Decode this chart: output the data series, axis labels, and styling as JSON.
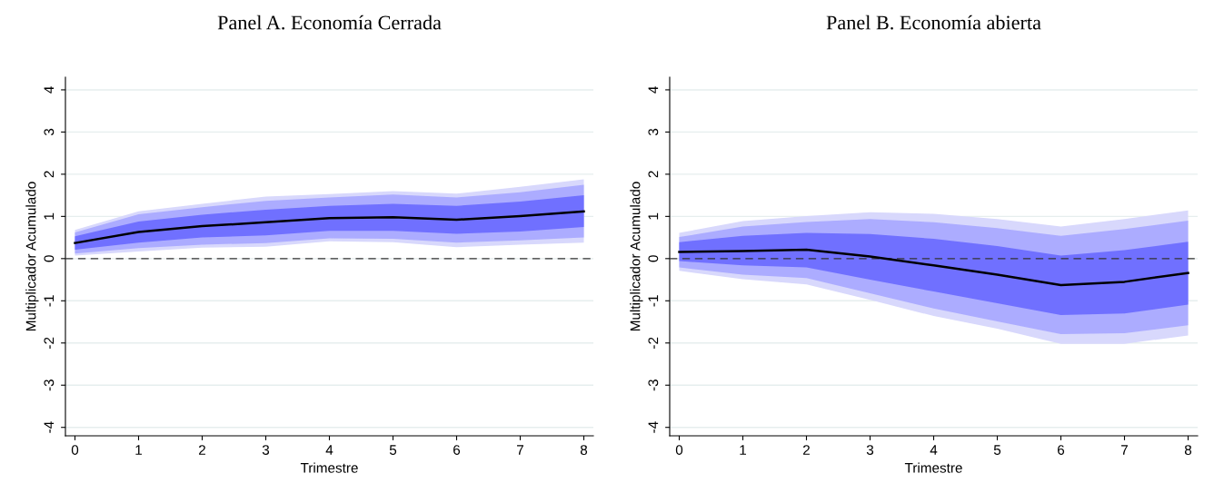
{
  "chart_data": [
    {
      "type": "line",
      "title": "Panel A. Economía Cerrada",
      "xlabel": "Trimestre",
      "ylabel": "Multiplicador Acumulado",
      "x": [
        0,
        1,
        2,
        3,
        4,
        5,
        6,
        7,
        8
      ],
      "xlim": [
        -0.15,
        8.15
      ],
      "xticks": [
        0,
        1,
        2,
        3,
        4,
        5,
        6,
        7,
        8
      ],
      "ylim": [
        -4.2,
        4.3
      ],
      "yticks": [
        {
          "value": -4,
          "label": "-4"
        },
        {
          "value": -3,
          "label": "-3"
        },
        {
          "value": -2,
          "label": "-2"
        },
        {
          "value": -1,
          "label": "-1"
        },
        0,
        1,
        2,
        3,
        4
      ],
      "grid": "y",
      "legend": false,
      "ref_lines": [
        {
          "axis": "y",
          "value": 0,
          "color": "#333333",
          "line_style": "dashed"
        }
      ],
      "series": [
        {
          "type": "area",
          "color": "#d8d8fc",
          "values": [
            null,
            null,
            null,
            null,
            null,
            null,
            null,
            null,
            null
          ],
          "lower": [
            0.07,
            0.17,
            0.26,
            0.28,
            0.41,
            0.39,
            0.27,
            0.33,
            0.38
          ],
          "upper": [
            0.68,
            1.12,
            1.3,
            1.47,
            1.53,
            1.6,
            1.54,
            1.7,
            1.88
          ]
        },
        {
          "type": "area",
          "color": "#acacff",
          "values": [
            null,
            null,
            null,
            null,
            null,
            null,
            null,
            null,
            null
          ],
          "lower": [
            0.12,
            0.25,
            0.33,
            0.37,
            0.48,
            0.47,
            0.38,
            0.43,
            0.5
          ],
          "upper": [
            0.62,
            1.05,
            1.22,
            1.37,
            1.45,
            1.52,
            1.45,
            1.57,
            1.75
          ]
        },
        {
          "type": "area",
          "color": "#7070ff",
          "values": [
            null,
            null,
            null,
            null,
            null,
            null,
            null,
            null,
            null
          ],
          "lower": [
            0.21,
            0.38,
            0.5,
            0.55,
            0.66,
            0.66,
            0.59,
            0.64,
            0.75
          ],
          "upper": [
            0.53,
            0.88,
            1.04,
            1.16,
            1.25,
            1.3,
            1.25,
            1.35,
            1.5
          ]
        },
        {
          "color": "#000000",
          "values": [
            0.37,
            0.63,
            0.77,
            0.86,
            0.96,
            0.98,
            0.92,
            1.01,
            1.12
          ]
        }
      ]
    },
    {
      "type": "line",
      "title": "Panel B. Economía abierta",
      "xlabel": "Trimestre",
      "ylabel": "Multiplicador Acumulado",
      "x": [
        0,
        1,
        2,
        3,
        4,
        5,
        6,
        7,
        8
      ],
      "xlim": [
        -0.15,
        8.15
      ],
      "xticks": [
        0,
        1,
        2,
        3,
        4,
        5,
        6,
        7,
        8
      ],
      "ylim": [
        -4.2,
        4.3
      ],
      "yticks": [
        {
          "value": -4,
          "label": "-4"
        },
        {
          "value": -3,
          "label": "-3"
        },
        {
          "value": -2,
          "label": "-2"
        },
        {
          "value": -1,
          "label": "-1"
        },
        0,
        1,
        2,
        3,
        4
      ],
      "grid": "y",
      "legend": false,
      "ref_lines": [
        {
          "axis": "y",
          "value": 0,
          "color": "#333333",
          "line_style": "dashed"
        }
      ],
      "series": [
        {
          "type": "area",
          "color": "#d8d8fc",
          "values": [
            null,
            null,
            null,
            null,
            null,
            null,
            null,
            null,
            null
          ],
          "lower": [
            -0.29,
            -0.49,
            -0.61,
            -0.98,
            -1.36,
            -1.66,
            -2.02,
            -2.02,
            -1.82
          ],
          "upper": [
            0.61,
            0.89,
            1.01,
            1.1,
            1.06,
            0.94,
            0.76,
            0.94,
            1.14
          ]
        },
        {
          "type": "area",
          "color": "#acacff",
          "values": [
            null,
            null,
            null,
            null,
            null,
            null,
            null,
            null,
            null
          ],
          "lower": [
            -0.21,
            -0.38,
            -0.46,
            -0.82,
            -1.18,
            -1.49,
            -1.79,
            -1.77,
            -1.58
          ],
          "upper": [
            0.51,
            0.76,
            0.87,
            0.94,
            0.86,
            0.72,
            0.54,
            0.7,
            0.9
          ]
        },
        {
          "type": "area",
          "color": "#7070ff",
          "values": [
            null,
            null,
            null,
            null,
            null,
            null,
            null,
            null,
            null
          ],
          "lower": [
            -0.06,
            -0.16,
            -0.21,
            -0.5,
            -0.78,
            -1.06,
            -1.34,
            -1.3,
            -1.09
          ],
          "upper": [
            0.39,
            0.54,
            0.61,
            0.58,
            0.47,
            0.3,
            0.07,
            0.2,
            0.4
          ]
        },
        {
          "color": "#000000",
          "values": [
            0.16,
            0.18,
            0.21,
            0.05,
            -0.16,
            -0.38,
            -0.63,
            -0.55,
            -0.34
          ]
        }
      ]
    }
  ]
}
